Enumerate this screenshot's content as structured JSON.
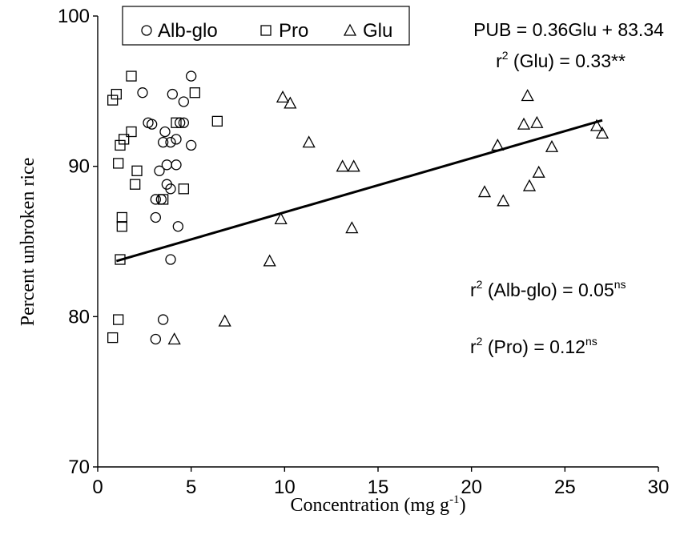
{
  "chart_data": {
    "type": "scatter",
    "title": "",
    "xlabel": "Concentration (mg g",
    "xlabel_sup": "-1",
    "xlabel_end": ")",
    "ylabel": "Percent unbroken rice",
    "xlim": [
      0,
      30
    ],
    "ylim": [
      70,
      100
    ],
    "x_ticks": [
      "0",
      "5",
      "10",
      "15",
      "20",
      "25",
      "30"
    ],
    "y_ticks": [
      "70",
      "80",
      "90",
      "100"
    ],
    "grid": false,
    "legend_position": "top-left",
    "series": [
      {
        "name": "Alb-glo",
        "marker": "circle",
        "points": [
          [
            2.4,
            94.9
          ],
          [
            5.0,
            96.0
          ],
          [
            4.0,
            94.8
          ],
          [
            4.6,
            94.3
          ],
          [
            2.7,
            92.9
          ],
          [
            2.9,
            92.8
          ],
          [
            4.4,
            92.9
          ],
          [
            4.6,
            92.9
          ],
          [
            3.6,
            92.3
          ],
          [
            3.5,
            91.6
          ],
          [
            3.9,
            91.6
          ],
          [
            4.2,
            91.8
          ],
          [
            5.0,
            91.4
          ],
          [
            3.7,
            90.1
          ],
          [
            4.2,
            90.1
          ],
          [
            3.3,
            89.7
          ],
          [
            3.7,
            88.8
          ],
          [
            3.9,
            88.5
          ],
          [
            3.1,
            87.8
          ],
          [
            3.4,
            87.8
          ],
          [
            3.1,
            86.6
          ],
          [
            4.3,
            86.0
          ],
          [
            3.9,
            83.8
          ],
          [
            3.5,
            79.8
          ],
          [
            3.1,
            78.5
          ]
        ]
      },
      {
        "name": "Pro",
        "marker": "square",
        "points": [
          [
            1.8,
            96.0
          ],
          [
            0.8,
            94.4
          ],
          [
            1.0,
            94.8
          ],
          [
            5.2,
            94.9
          ],
          [
            6.4,
            93.0
          ],
          [
            4.2,
            92.9
          ],
          [
            1.8,
            92.3
          ],
          [
            1.4,
            91.8
          ],
          [
            1.2,
            91.4
          ],
          [
            1.1,
            90.2
          ],
          [
            2.1,
            89.7
          ],
          [
            2.0,
            88.8
          ],
          [
            4.6,
            88.5
          ],
          [
            3.5,
            87.8
          ],
          [
            1.3,
            86.6
          ],
          [
            1.3,
            86.0
          ],
          [
            1.2,
            83.8
          ],
          [
            1.1,
            79.8
          ],
          [
            0.8,
            78.6
          ]
        ]
      },
      {
        "name": "Glu",
        "marker": "triangle",
        "points": [
          [
            9.9,
            94.6
          ],
          [
            10.3,
            94.2
          ],
          [
            11.3,
            91.6
          ],
          [
            13.1,
            90.0
          ],
          [
            13.7,
            90.0
          ],
          [
            9.8,
            86.5
          ],
          [
            13.6,
            85.9
          ],
          [
            9.2,
            83.7
          ],
          [
            6.8,
            79.7
          ],
          [
            4.1,
            78.5
          ],
          [
            23.0,
            94.7
          ],
          [
            22.8,
            92.8
          ],
          [
            23.5,
            92.9
          ],
          [
            26.7,
            92.7
          ],
          [
            27.0,
            92.2
          ],
          [
            21.4,
            91.4
          ],
          [
            24.3,
            91.3
          ],
          [
            23.6,
            89.6
          ],
          [
            20.7,
            88.3
          ],
          [
            23.1,
            88.7
          ],
          [
            21.7,
            87.7
          ]
        ]
      }
    ],
    "trendline": {
      "series": "Glu",
      "slope": 0.36,
      "intercept": 83.34,
      "x_range": [
        1,
        27
      ]
    },
    "annotations": {
      "equation": "PUB = 0.36Glu + 83.34",
      "glu_r2_text": " (Glu) = 0.33**",
      "albglo_r2_text": " (Alb-glo) = 0.05",
      "pro_r2_text": " (Pro) = 0.12",
      "r_symbol": "r",
      "sq": "2",
      "ns": "ns"
    }
  }
}
